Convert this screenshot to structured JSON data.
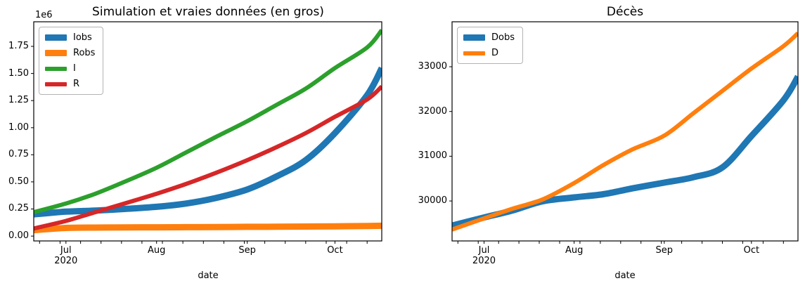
{
  "figure": {
    "background": "#ffffff",
    "text_color": "#000000",
    "spine_color": "#000000"
  },
  "chart_data": [
    {
      "type": "line",
      "title": "Simulation et vraies données (en gros)",
      "xlabel": "date",
      "offset_text": "1e6",
      "grid": false,
      "legend_position": "upper left",
      "x_dates": [
        "2020-06-20",
        "2020-07-01",
        "2020-07-11",
        "2020-07-21",
        "2020-08-01",
        "2020-08-11",
        "2020-08-21",
        "2020-09-01",
        "2020-09-11",
        "2020-09-21",
        "2020-10-01",
        "2020-10-11",
        "2020-10-17"
      ],
      "x_days": [
        0,
        11,
        21,
        31,
        42,
        52,
        62,
        73,
        83,
        93,
        103,
        114,
        119
      ],
      "xlim": [
        0,
        119
      ],
      "ylim": [
        -45000,
        1977000
      ],
      "series": [
        {
          "name": "Iobs",
          "color": "#1f77b4",
          "linewidth": 9,
          "values": [
            200000,
            225000,
            235000,
            250000,
            270000,
            300000,
            350000,
            430000,
            550000,
            700000,
            950000,
            1300000,
            1550000
          ]
        },
        {
          "name": "Robs",
          "color": "#ff7f0e",
          "linewidth": 9,
          "values": [
            55000,
            75000,
            78000,
            80000,
            81000,
            82000,
            83000,
            85000,
            86000,
            88000,
            90000,
            93000,
            95000
          ]
        },
        {
          "name": "I",
          "color": "#2ca02c",
          "linewidth": 6,
          "values": [
            220000,
            300000,
            390000,
            500000,
            630000,
            770000,
            910000,
            1060000,
            1210000,
            1360000,
            1550000,
            1740000,
            1900000
          ]
        },
        {
          "name": "R",
          "color": "#d62728",
          "linewidth": 6,
          "values": [
            70000,
            140000,
            220000,
            300000,
            390000,
            480000,
            580000,
            700000,
            820000,
            950000,
            1100000,
            1260000,
            1380000
          ]
        }
      ],
      "yticks": {
        "values": [
          0,
          250000,
          500000,
          750000,
          1000000,
          1250000,
          1500000,
          1750000
        ],
        "labels": [
          "0.00",
          "0.25",
          "0.50",
          "0.75",
          "1.00",
          "1.25",
          "1.50",
          "1.75"
        ]
      },
      "xticks": {
        "days": [
          11,
          42,
          73,
          103
        ],
        "labels": [
          "Jul",
          "Aug",
          "Sep",
          "Oct"
        ],
        "year_label": "2020",
        "year_under_day": 11
      },
      "minor_tick_days": [
        2,
        9,
        16,
        23,
        30,
        37,
        44,
        51,
        58,
        65,
        72,
        79,
        86,
        93,
        100,
        107,
        114
      ]
    },
    {
      "type": "line",
      "title": "Décès",
      "xlabel": "date",
      "offset_text": "",
      "grid": false,
      "legend_position": "upper left",
      "x_dates": [
        "2020-06-20",
        "2020-07-01",
        "2020-07-11",
        "2020-07-21",
        "2020-08-01",
        "2020-08-11",
        "2020-08-21",
        "2020-09-01",
        "2020-09-11",
        "2020-09-21",
        "2020-10-01",
        "2020-10-11",
        "2020-10-17"
      ],
      "x_days": [
        0,
        11,
        21,
        31,
        42,
        52,
        62,
        73,
        83,
        93,
        103,
        114,
        119
      ],
      "xlim": [
        0,
        119
      ],
      "ylim": [
        29106,
        34005
      ],
      "series": [
        {
          "name": "Dobs",
          "color": "#1f77b4",
          "linewidth": 9,
          "values": [
            29450,
            29630,
            29790,
            29990,
            30080,
            30150,
            30280,
            30410,
            30530,
            30750,
            31450,
            32250,
            32780
          ]
        },
        {
          "name": "D",
          "color": "#ff7f0e",
          "linewidth": 6,
          "values": [
            29360,
            29610,
            29830,
            30030,
            30400,
            30800,
            31150,
            31460,
            31960,
            32460,
            32960,
            33460,
            33750
          ]
        }
      ],
      "yticks": {
        "values": [
          30000,
          31000,
          32000,
          33000
        ],
        "labels": [
          "30000",
          "31000",
          "32000",
          "33000"
        ]
      },
      "xticks": {
        "days": [
          11,
          42,
          73,
          103
        ],
        "labels": [
          "Jul",
          "Aug",
          "Sep",
          "Oct"
        ],
        "year_label": "2020",
        "year_under_day": 11
      },
      "minor_tick_days": [
        2,
        9,
        16,
        23,
        30,
        37,
        44,
        51,
        58,
        65,
        72,
        79,
        86,
        93,
        100,
        107,
        114
      ]
    }
  ]
}
